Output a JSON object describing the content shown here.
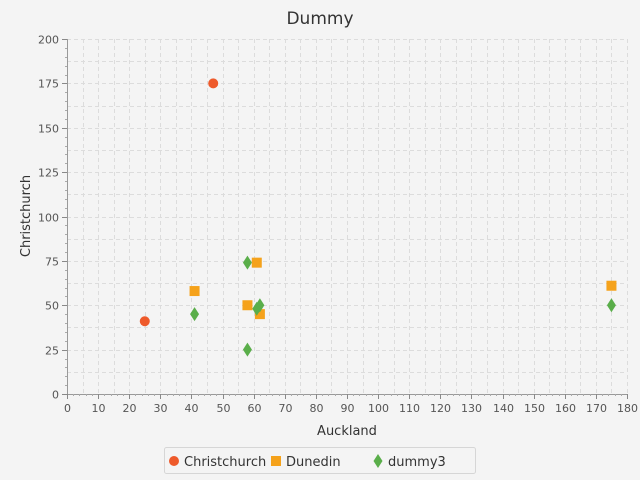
{
  "chart_data": {
    "type": "scatter",
    "title": "Dummy",
    "xlabel": "Auckland",
    "ylabel": "Christchurch",
    "xlim": [
      0,
      180
    ],
    "ylim": [
      0,
      200
    ],
    "x_ticks": [
      0,
      10,
      20,
      30,
      40,
      50,
      60,
      70,
      80,
      90,
      100,
      110,
      120,
      130,
      140,
      150,
      160,
      170,
      180
    ],
    "y_ticks": [
      0,
      25,
      50,
      75,
      100,
      125,
      150,
      175,
      200
    ],
    "grid": true,
    "legend_position": "bottom",
    "series": [
      {
        "name": "Christchurch",
        "marker": "circle",
        "color": "#ee5a2b",
        "points": [
          [
            47,
            175
          ],
          [
            25,
            41
          ]
        ]
      },
      {
        "name": "Dunedin",
        "marker": "square",
        "color": "#f5a21b",
        "points": [
          [
            41,
            58
          ],
          [
            58,
            50
          ],
          [
            61,
            74
          ],
          [
            62,
            45
          ],
          [
            175,
            61
          ]
        ]
      },
      {
        "name": "dummy3",
        "marker": "diamond",
        "color": "#5aae4a",
        "points": [
          [
            41,
            45
          ],
          [
            58,
            74
          ],
          [
            58,
            25
          ],
          [
            61,
            48
          ],
          [
            62,
            50
          ],
          [
            175,
            50
          ]
        ]
      }
    ]
  }
}
